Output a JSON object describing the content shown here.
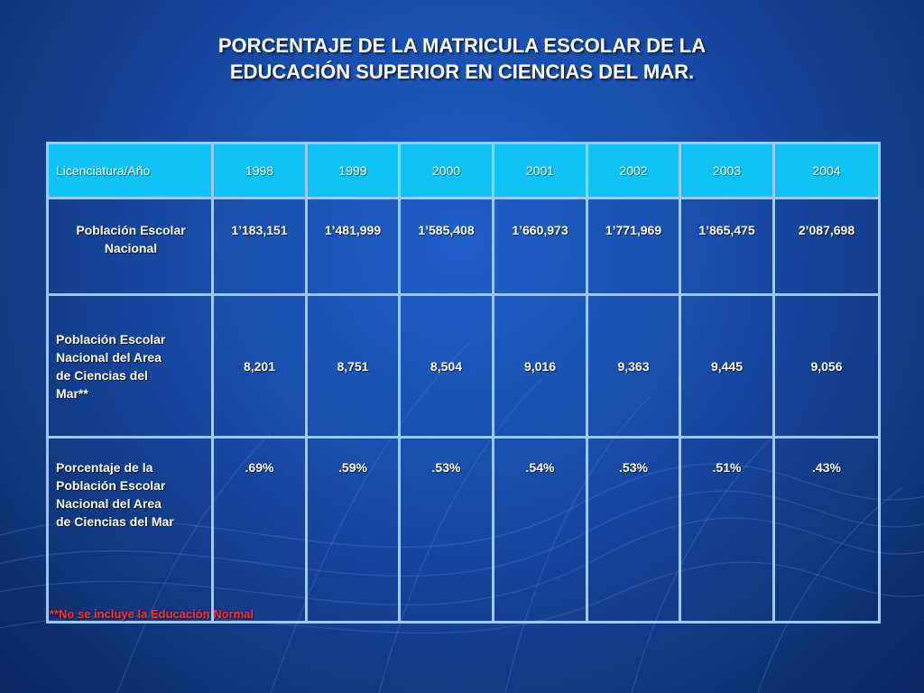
{
  "slide": {
    "title_line1": "PORCENTAJE DE LA MATRICULA ESCOLAR DE LA",
    "title_line2": "EDUCACIÓN SUPERIOR EN CIENCIAS DEL MAR.",
    "footnote": "**No se incluye la Educación Normal",
    "colors": {
      "header_fill": "#0fc3f6",
      "border": "#9ec9ff",
      "footnote": "#ff2b2b"
    }
  },
  "table": {
    "header": [
      "Licenciatura/Año",
      "1998",
      "1999",
      "2000",
      "2001",
      "2002",
      "2003",
      "2004"
    ],
    "rows": [
      {
        "label_line1": "Población Escolar",
        "label_line2": "Nacional",
        "values": [
          "1’183,151",
          "1’481,999",
          "1’585,408",
          "1’660,973",
          "1’771,969",
          "1’865,475",
          "2’087,698"
        ]
      },
      {
        "label_lines": [
          "Población Escolar",
          "Nacional del Area",
          "de Ciencias del",
          "Mar**"
        ],
        "values": [
          "8,201",
          "8,751",
          "8,504",
          "9,016",
          "9,363",
          "9,445",
          "9,056"
        ]
      },
      {
        "label_lines": [
          "Porcentaje de la",
          "Población Escolar",
          "Nacional del Area",
          "de Ciencias del Mar"
        ],
        "values": [
          ".69%",
          ".59%",
          ".53%",
          ".54%",
          ".53%",
          ".51%",
          ".43%"
        ]
      }
    ]
  }
}
